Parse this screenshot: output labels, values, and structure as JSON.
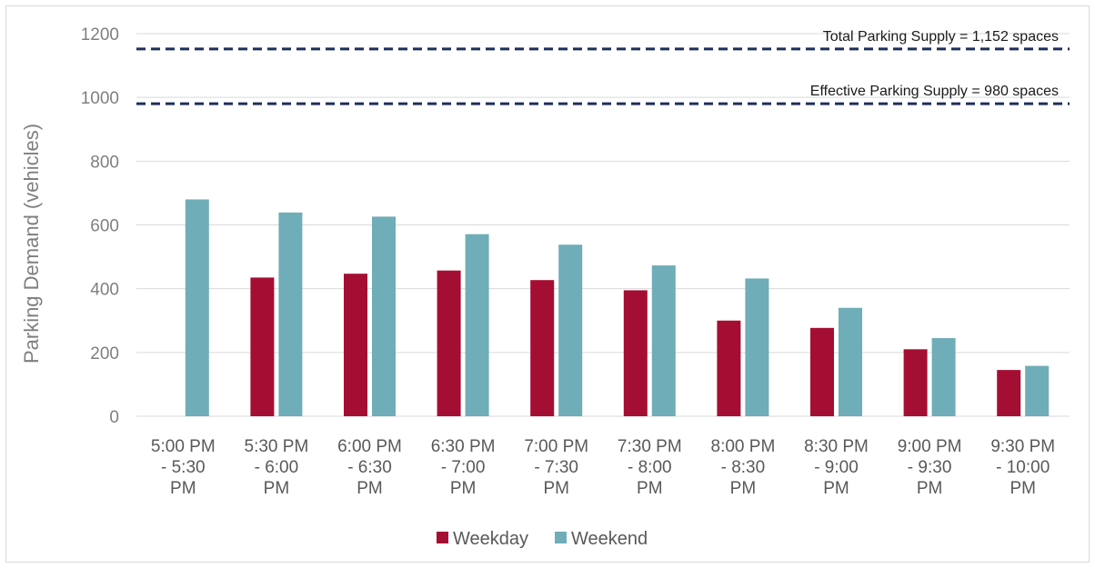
{
  "chart_data": {
    "type": "bar",
    "title": "",
    "xlabel": "",
    "ylabel": "Parking Demand (vehicles)",
    "ylim": [
      0,
      1200
    ],
    "yticks": [
      "0",
      "200",
      "400",
      "600",
      "800",
      "1000",
      "1200"
    ],
    "grid": true,
    "legend_position": "bottom",
    "categories": [
      [
        "5:00 PM",
        "- 5:30",
        "PM"
      ],
      [
        "5:30 PM",
        "- 6:00",
        "PM"
      ],
      [
        "6:00 PM",
        "- 6:30",
        "PM"
      ],
      [
        "6:30 PM",
        "- 7:00",
        "PM"
      ],
      [
        "7:00 PM",
        "- 7:30",
        "PM"
      ],
      [
        "7:30 PM",
        "- 8:00",
        "PM"
      ],
      [
        "8:00 PM",
        "- 8:30",
        "PM"
      ],
      [
        "8:30 PM",
        "- 9:00",
        "PM"
      ],
      [
        "9:00 PM",
        "- 9:30",
        "PM"
      ],
      [
        "9:30 PM",
        "- 10:00",
        "PM"
      ]
    ],
    "series": [
      {
        "name": "Weekday",
        "color": "#a50e33",
        "values": [
          null,
          435,
          447,
          457,
          427,
          395,
          300,
          277,
          210,
          145
        ]
      },
      {
        "name": "Weekend",
        "color": "#6fadb8",
        "values": [
          680,
          639,
          626,
          571,
          538,
          473,
          432,
          340,
          245,
          158
        ]
      }
    ],
    "reference_lines": [
      {
        "label": "Total Parking Supply = 1,152 spaces",
        "value": 1152,
        "color": "#1f2d5c",
        "style": "dashed"
      },
      {
        "label": "Effective Parking Supply = 980 spaces",
        "value": 980,
        "color": "#1f2d5c",
        "style": "dashed"
      }
    ]
  }
}
